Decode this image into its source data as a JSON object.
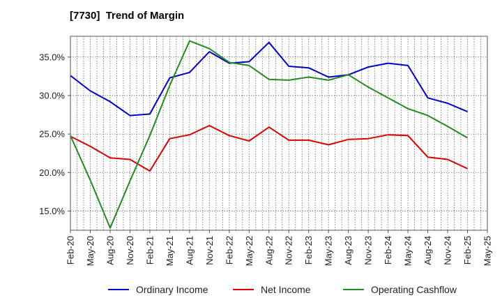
{
  "chart_data": {
    "type": "line",
    "title": "[7730]  Trend of Margin",
    "xlabel": "",
    "ylabel": "",
    "categories": [
      "Feb-20",
      "May-20",
      "Aug-20",
      "Nov-20",
      "Feb-21",
      "May-21",
      "Aug-21",
      "Nov-21",
      "Feb-22",
      "May-22",
      "Aug-22",
      "Nov-22",
      "Feb-23",
      "May-23",
      "Aug-23",
      "Nov-23",
      "Feb-24",
      "May-24",
      "Aug-24",
      "Nov-24",
      "Feb-25",
      "May-25"
    ],
    "ylim": [
      12.5,
      37.7
    ],
    "yticks": [
      15.0,
      20.0,
      25.0,
      30.0,
      35.0
    ],
    "ytick_labels": [
      "15.0%",
      "20.0%",
      "25.0%",
      "30.0%",
      "35.0%"
    ],
    "grid": true,
    "legend_position": "bottom",
    "series": [
      {
        "name": "Ordinary Income",
        "color": "#0000cc",
        "values": [
          32.6,
          30.6,
          29.2,
          27.4,
          27.6,
          32.3,
          33.0,
          35.7,
          34.2,
          34.4,
          36.9,
          33.8,
          33.6,
          32.4,
          32.7,
          33.7,
          34.2,
          33.9,
          29.7,
          29.0,
          27.9,
          null
        ]
      },
      {
        "name": "Net Income",
        "color": "#dd0000",
        "values": [
          24.7,
          23.4,
          21.9,
          21.7,
          20.2,
          24.4,
          24.9,
          26.1,
          24.8,
          24.1,
          25.9,
          24.2,
          24.2,
          23.6,
          24.3,
          24.4,
          24.9,
          24.8,
          22.0,
          21.7,
          20.5,
          null
        ]
      },
      {
        "name": "Operating Cashflow",
        "color": "#228b22",
        "values": [
          24.8,
          19.0,
          12.8,
          18.9,
          24.8,
          31.3,
          37.1,
          36.1,
          34.3,
          33.9,
          32.1,
          32.0,
          32.4,
          32.0,
          32.7,
          31.1,
          29.7,
          28.3,
          27.4,
          26.0,
          24.5,
          null
        ]
      }
    ]
  }
}
